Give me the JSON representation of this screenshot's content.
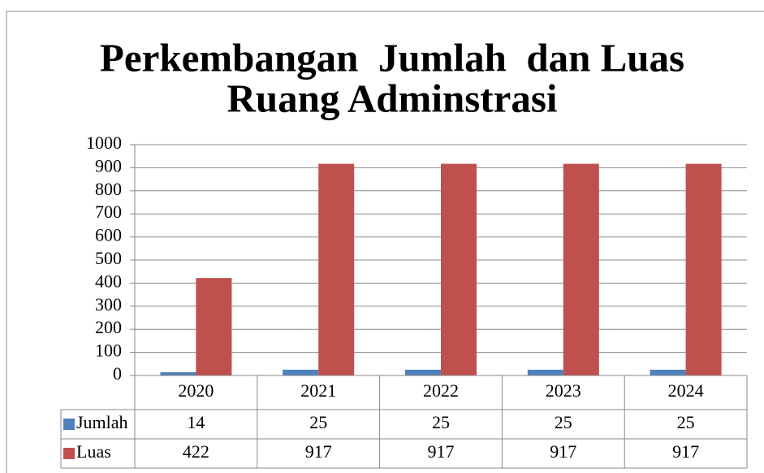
{
  "chart_data": {
    "type": "bar",
    "title": [
      "Perkembangan  Jumlah  dan Luas",
      "Ruang Adminstrasi"
    ],
    "categories": [
      "2020",
      "2021",
      "2022",
      "2023",
      "2024"
    ],
    "series": [
      {
        "name": "Jumlah",
        "color": "#4f81bd",
        "values": [
          14,
          25,
          25,
          25,
          25
        ]
      },
      {
        "name": "Luas",
        "color": "#c0504d",
        "values": [
          422,
          917,
          917,
          917,
          917
        ]
      }
    ],
    "ylim": [
      0,
      1000
    ],
    "yticks": [
      0,
      100,
      200,
      300,
      400,
      500,
      600,
      700,
      800,
      900,
      1000
    ],
    "grid": true,
    "data_table": true
  }
}
